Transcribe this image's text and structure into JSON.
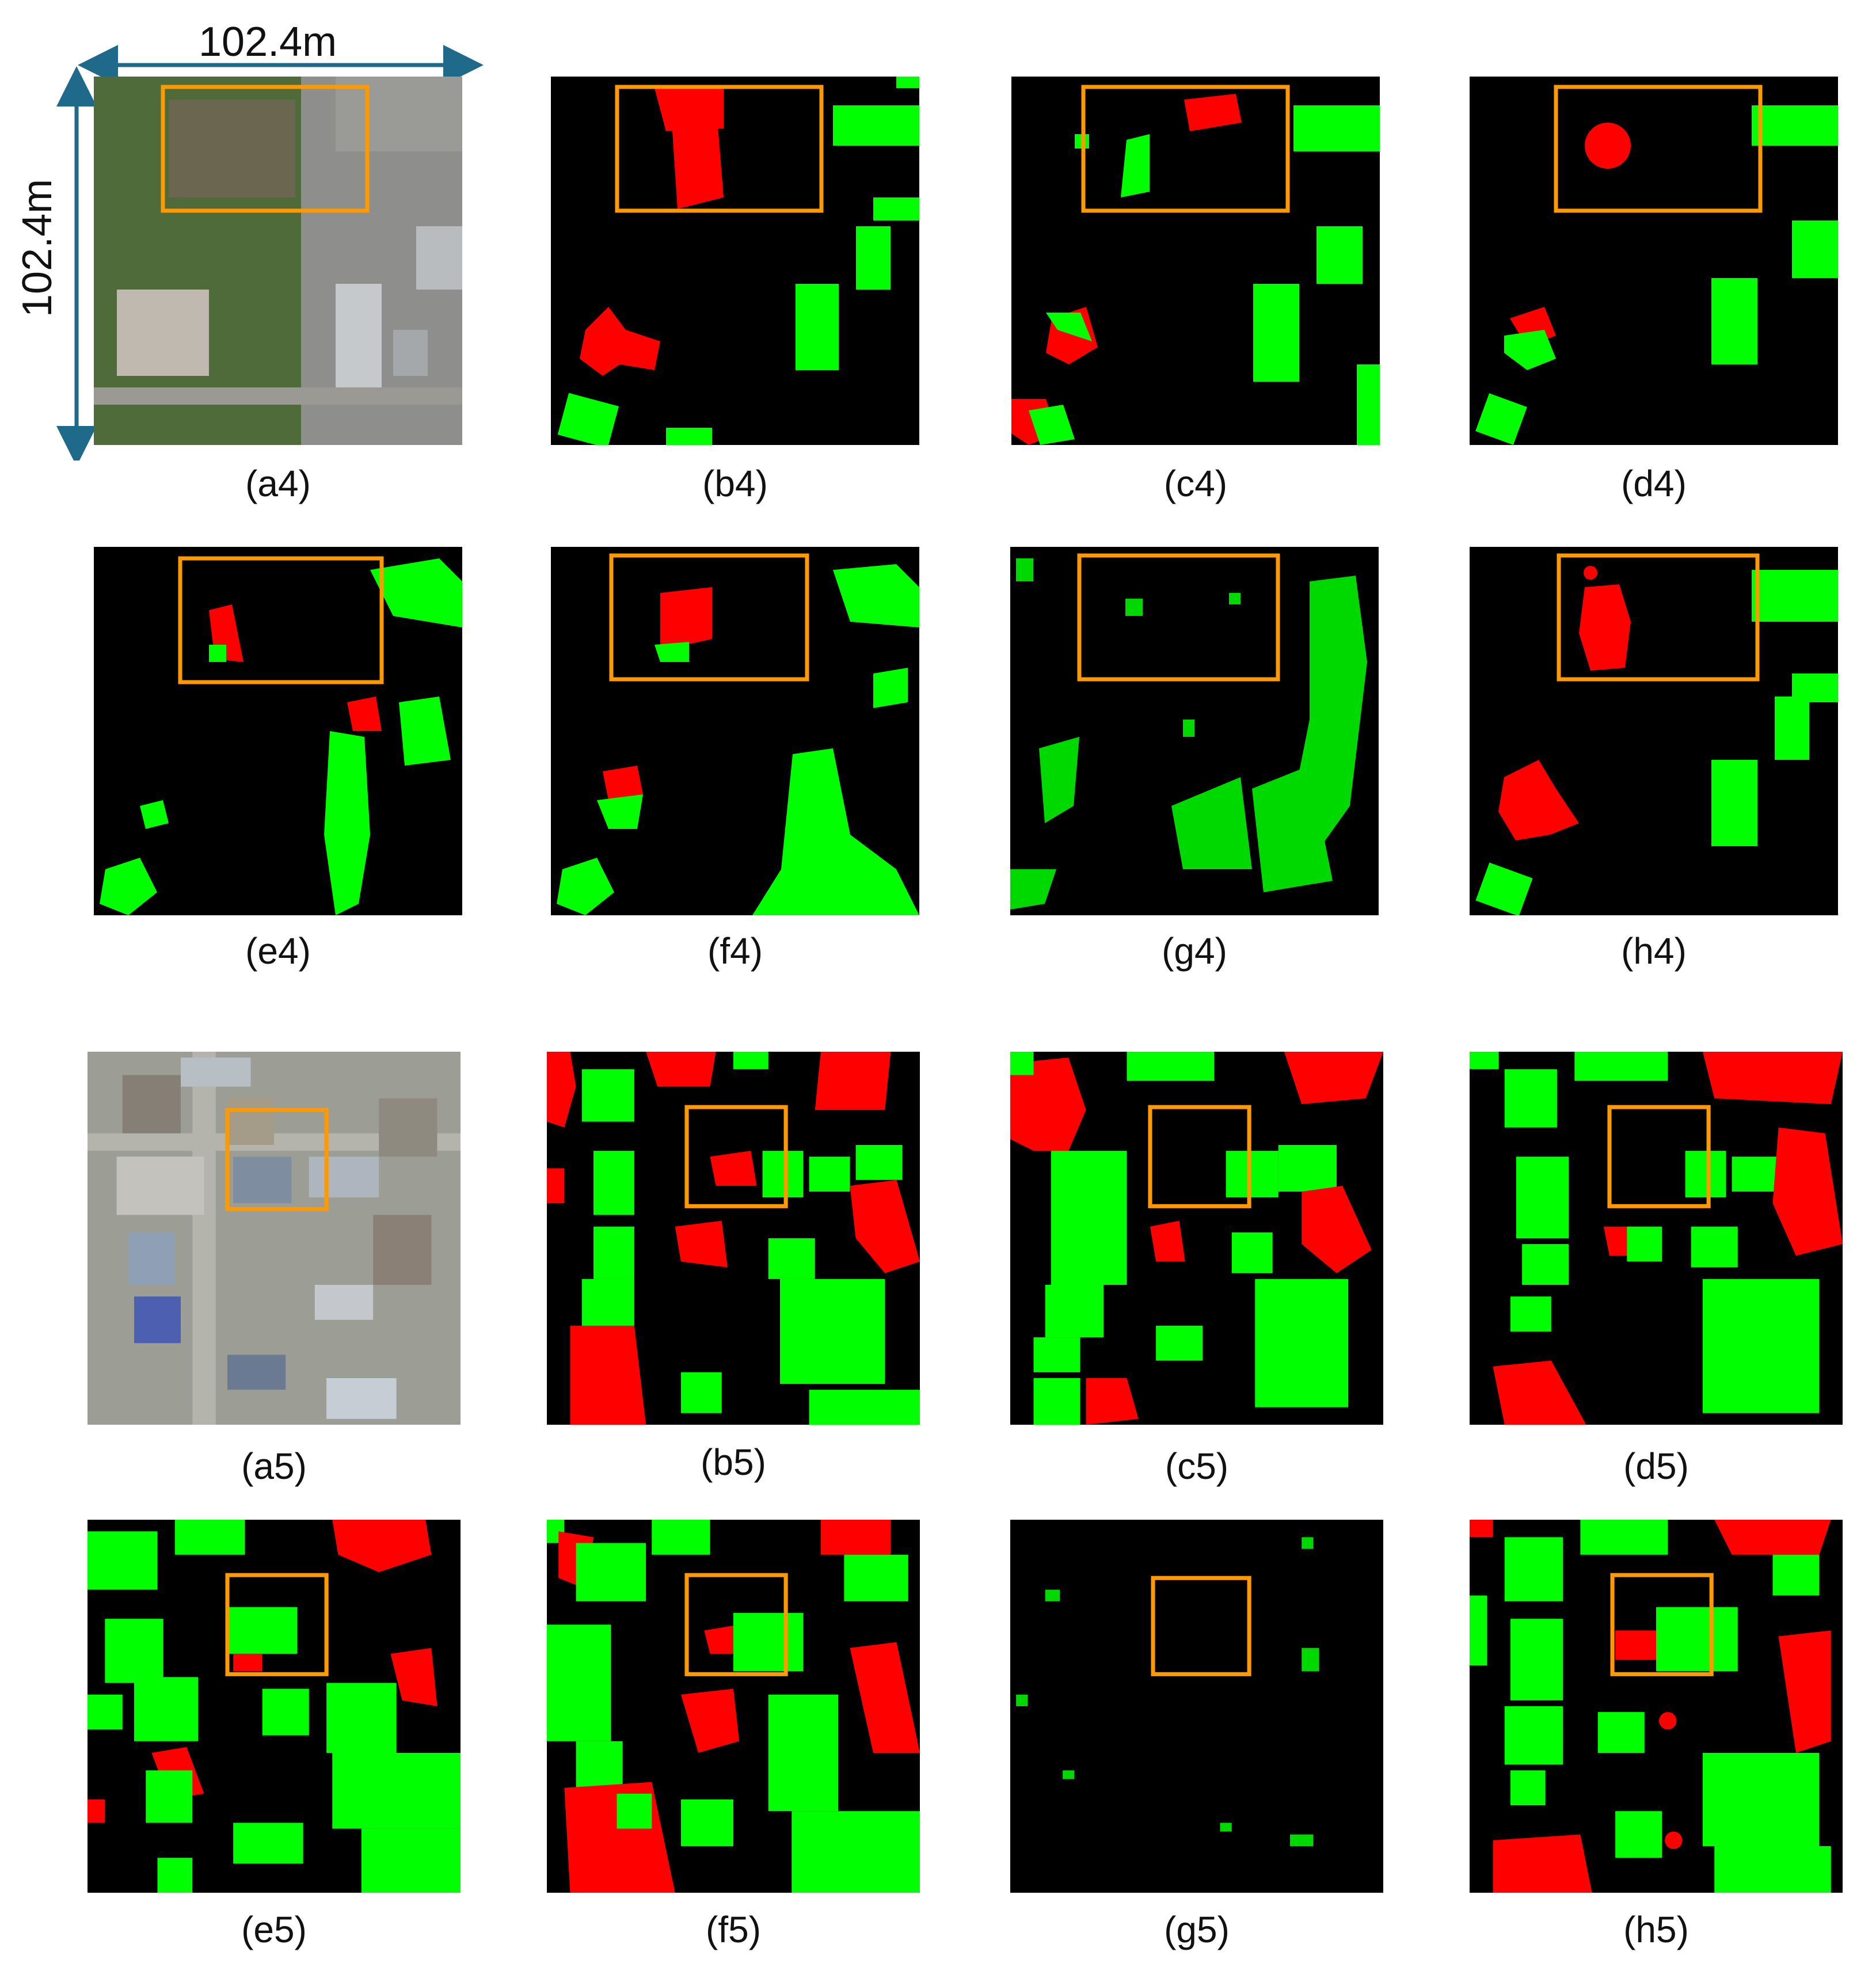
{
  "scale": {
    "horizontal": "102.4m",
    "vertical": "102.4m"
  },
  "colors": {
    "intact": "#00ff00",
    "damaged": "#ff0000",
    "background": "#000000",
    "roi_box": "#ff9900",
    "scale_arrow": "#1f6a8a"
  },
  "legend_semantics": {
    "green": "building",
    "red": "damaged building",
    "orange-box": "region of interest"
  },
  "rows": [
    {
      "captions": [
        "(a4)",
        "(b4)",
        "(c4)",
        "(d4)"
      ]
    },
    {
      "captions": [
        "(e4)",
        "(f4)",
        "(g4)",
        "(h4)"
      ]
    },
    {
      "captions": [
        "(a5)",
        "(b5)",
        "(c5)",
        "(d5)"
      ]
    },
    {
      "captions": [
        "(e5)",
        "(f5)",
        "(g5)",
        "(h5)"
      ]
    }
  ]
}
